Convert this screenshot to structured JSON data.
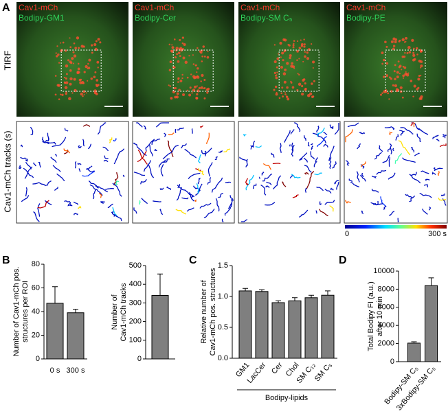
{
  "panel_labels": [
    "A",
    "B",
    "C",
    "D"
  ],
  "panel_a": {
    "row_labels": [
      "TIRF",
      "Cav1-mCh tracks (s)"
    ],
    "images": [
      {
        "red_label": "Cav1-mCh",
        "green_label": "Bodipy-GM1"
      },
      {
        "red_label": "Cav1-mCh",
        "green_label": "Bodipy-Cer"
      },
      {
        "red_label": "Cav1-mCh",
        "green_label": "Bodipy-SM C₅"
      },
      {
        "red_label": "Cav1-mCh",
        "green_label": "Bodipy-PE"
      }
    ],
    "colorbar_labels": [
      "0",
      "300 s"
    ]
  },
  "chart_data": [
    {
      "type": "bar",
      "ylabel": [
        "Number of Cav1-mCh pos.",
        "structures per ROI"
      ],
      "categories": [
        "0 s",
        "300 s"
      ],
      "values": [
        47,
        39
      ],
      "errors": [
        14,
        3
      ],
      "color": "#7f7f7f",
      "ylim": [
        0,
        80
      ],
      "yticks": [
        0,
        20,
        40,
        60,
        80
      ]
    },
    {
      "type": "bar",
      "ylabel": [
        "Number of",
        "Cav1-mCh tracks"
      ],
      "categories": [
        null
      ],
      "values": [
        340
      ],
      "errors": [
        115
      ],
      "color": "#7f7f7f",
      "ylim": [
        0,
        500
      ],
      "yticks": [
        0,
        100,
        200,
        300,
        400,
        500
      ]
    },
    {
      "type": "bar",
      "ylabel": [
        "Relative number of",
        "Cav1-mCh pos. structures"
      ],
      "xlabel": "Bodipy-lipids",
      "categories": [
        "GM1",
        "LacCer",
        "Cer",
        "Chol",
        "SM C₁₂",
        "SM C₅"
      ],
      "values": [
        1.09,
        1.08,
        0.9,
        0.93,
        0.98,
        1.02
      ],
      "errors": [
        0.04,
        0.03,
        0.03,
        0.05,
        0.04,
        0.07
      ],
      "color": "#7f7f7f",
      "ylim": [
        0,
        1.5
      ],
      "yticks": [
        {
          "value": 0,
          "label": "0.0"
        },
        {
          "value": 0.5,
          "label": "0.5"
        },
        {
          "value": 1,
          "label": "1.0"
        },
        {
          "value": 1.5,
          "label": "1.5"
        }
      ]
    },
    {
      "type": "bar",
      "ylabel": [
        "Total Bodipy FI (a.u.)",
        "after 10 min"
      ],
      "categories": [
        "Bodipy-SM C₅",
        "3xBodipy-SM C₅"
      ],
      "values": [
        2050,
        8400
      ],
      "errors": [
        150,
        850
      ],
      "color": "#7f7f7f",
      "ylim": [
        0,
        10000
      ],
      "yticks": [
        0,
        2000,
        4000,
        6000,
        8000,
        10000
      ]
    }
  ]
}
